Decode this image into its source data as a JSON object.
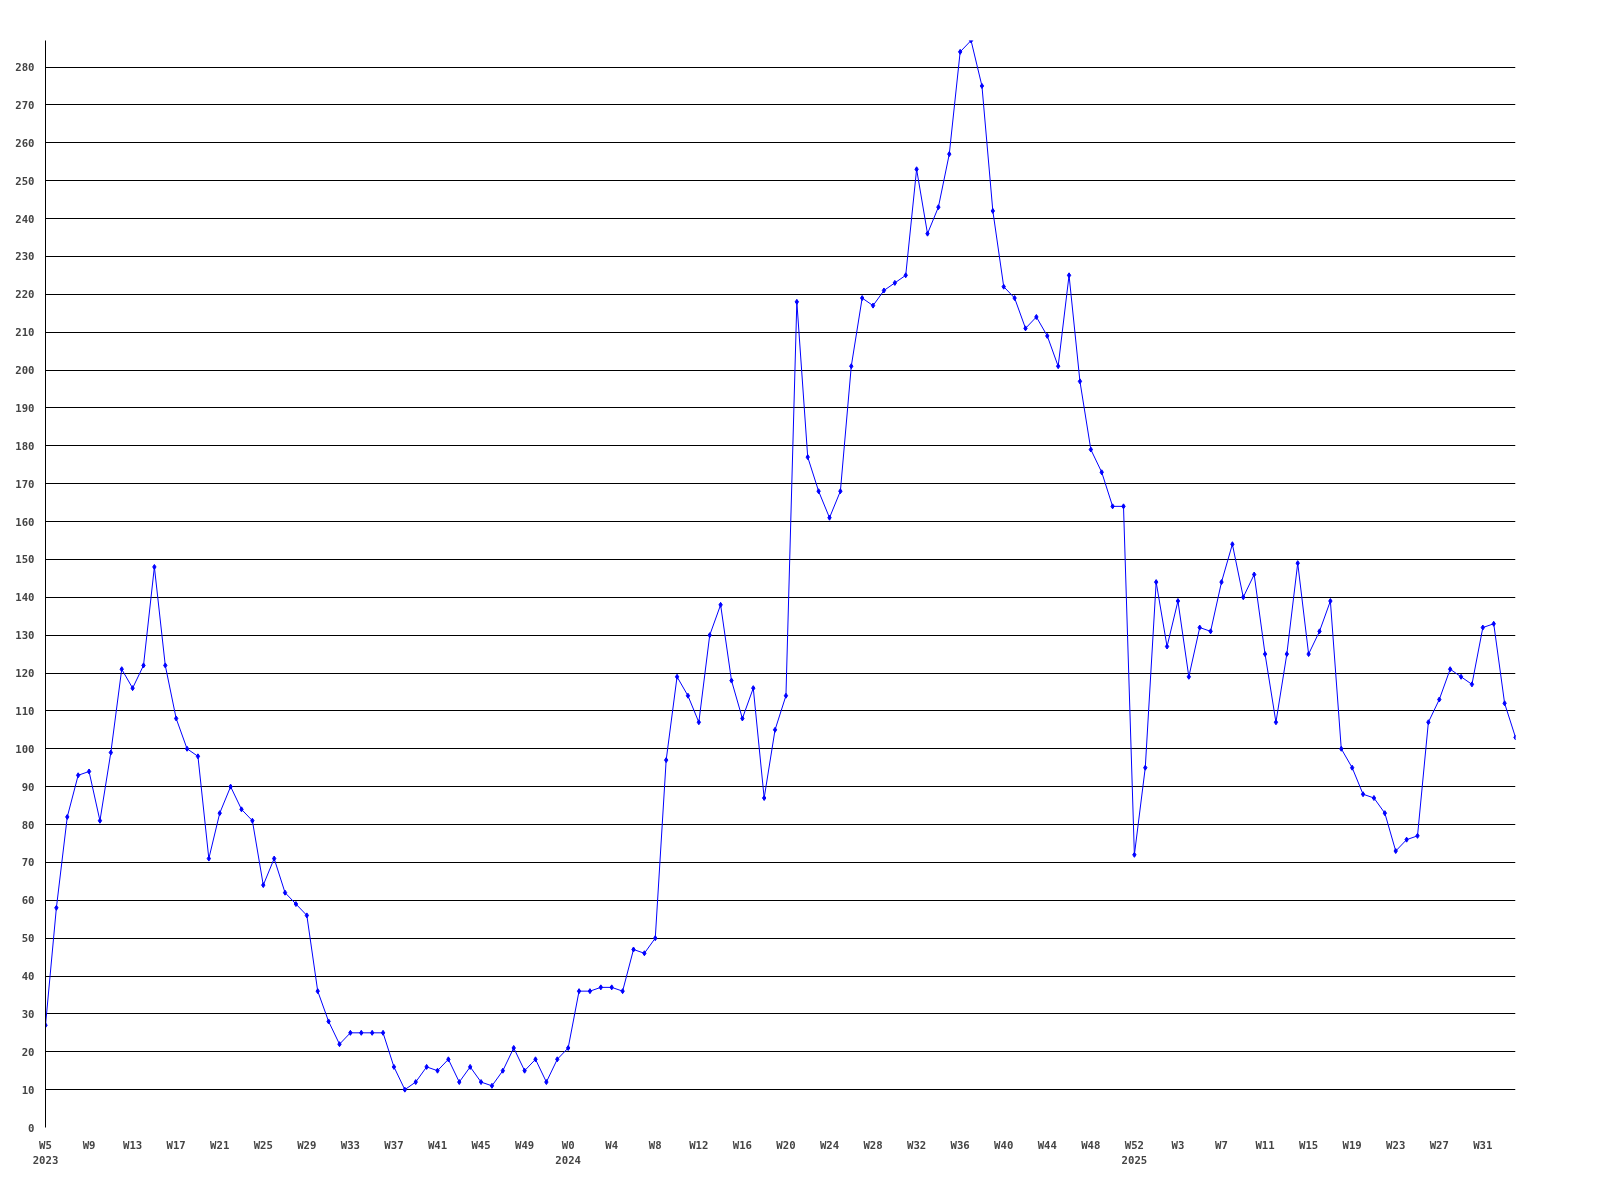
{
  "chart_data": {
    "type": "line",
    "categories": [
      "W5\n2023",
      null,
      null,
      null,
      "W9",
      null,
      null,
      null,
      "W13",
      null,
      null,
      null,
      "W17",
      null,
      null,
      null,
      "W21",
      null,
      null,
      null,
      "W25",
      null,
      null,
      null,
      "W29",
      null,
      null,
      null,
      "W33",
      null,
      null,
      null,
      "W37",
      null,
      null,
      null,
      "W41",
      null,
      null,
      null,
      "W45",
      null,
      null,
      null,
      "W49",
      null,
      null,
      null,
      "W0\n2024",
      null,
      null,
      null,
      "W4",
      null,
      null,
      null,
      "W8",
      null,
      null,
      null,
      "W12",
      null,
      null,
      null,
      "W16",
      null,
      null,
      null,
      "W20",
      null,
      null,
      null,
      "W24",
      null,
      null,
      null,
      "W28",
      null,
      null,
      null,
      "W32",
      null,
      null,
      null,
      "W36",
      null,
      null,
      null,
      "W40",
      null,
      null,
      null,
      "W44",
      null,
      null,
      null,
      "W48",
      null,
      null,
      null,
      "W52\n2025",
      null,
      null,
      null,
      "W3",
      null,
      null,
      null,
      "W7",
      null,
      null,
      null,
      "W11",
      null,
      null,
      null,
      "W15",
      null,
      null,
      null,
      "W19",
      null,
      null,
      null,
      "W23",
      null,
      null,
      null,
      "W27",
      null,
      null,
      null,
      "W31",
      null,
      null,
      null
    ],
    "series": [
      {
        "color": "#0000ff",
        "values": [
          27,
          58,
          82,
          93,
          94,
          81,
          99,
          121,
          116,
          122,
          148,
          122,
          108,
          100,
          98,
          71,
          83,
          90,
          84,
          81,
          64,
          71,
          62,
          59,
          56,
          36,
          28,
          22,
          25,
          25,
          25,
          25,
          16,
          10,
          12,
          16,
          15,
          18,
          12,
          16,
          12,
          11,
          15,
          21,
          15,
          18,
          12,
          18,
          21,
          36,
          36,
          37,
          37,
          36,
          47,
          46,
          50,
          97,
          119,
          114,
          107,
          130,
          138,
          118,
          108,
          116,
          87,
          105,
          114,
          218,
          177,
          168,
          161,
          168,
          201,
          219,
          217,
          221,
          223,
          225,
          253,
          236,
          243,
          257,
          284,
          287,
          275,
          242,
          222,
          219,
          211,
          214,
          209,
          201,
          225,
          197,
          179,
          173,
          164,
          164,
          72,
          95,
          144,
          127,
          139,
          119,
          132,
          131,
          144,
          154,
          140,
          146,
          125,
          107,
          125,
          149,
          125,
          131,
          139,
          100,
          95,
          88,
          87,
          83,
          73,
          76,
          77,
          107,
          113,
          121,
          119,
          117,
          132,
          133,
          112,
          103
        ]
      }
    ],
    "ylim": [
      0,
      287
    ],
    "yticks": [
      0,
      10,
      20,
      30,
      40,
      50,
      60,
      70,
      80,
      90,
      100,
      110,
      120,
      130,
      140,
      150,
      160,
      170,
      180,
      190,
      200,
      210,
      220,
      230,
      240,
      250,
      260,
      270,
      280
    ],
    "grid": "y",
    "marker": "diamond",
    "line_style": "solid"
  }
}
